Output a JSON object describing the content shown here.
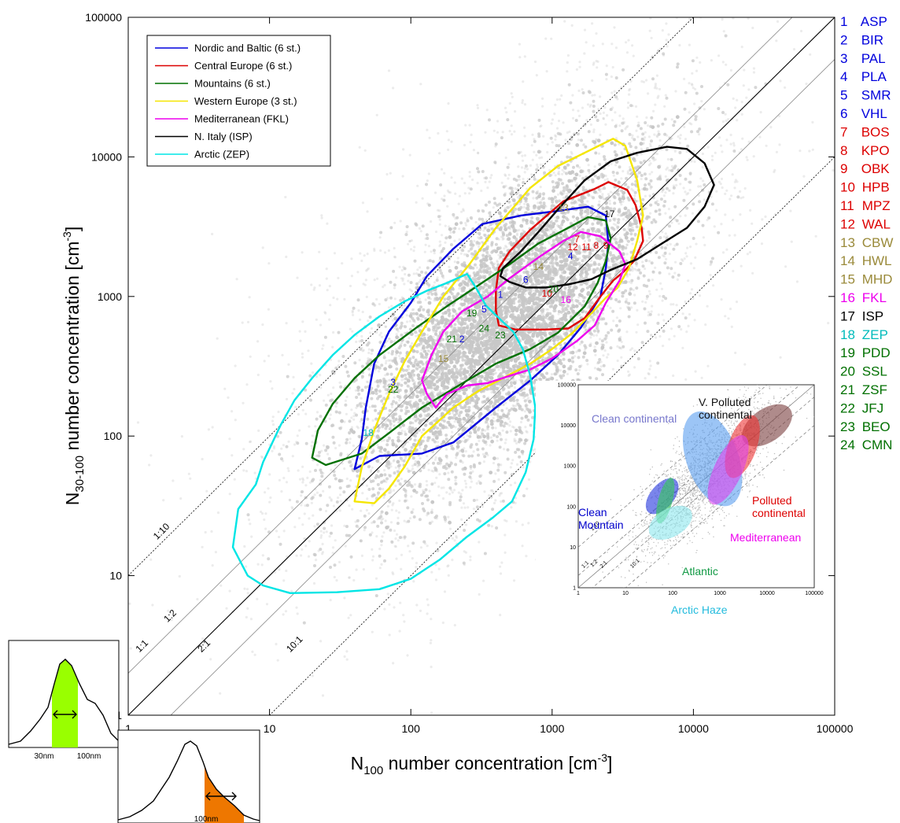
{
  "chart_data": {
    "type": "scatter",
    "x_scale": "log",
    "y_scale": "log",
    "xlim": [
      1,
      100000
    ],
    "ylim": [
      1,
      100000
    ],
    "x_ticks": [
      "1",
      "10",
      "100",
      "1000",
      "10000",
      "100000"
    ],
    "y_ticks": [
      "1",
      "10",
      "100",
      "1000",
      "10000",
      "100000"
    ],
    "xlabel_main": "N",
    "xlabel_sub": "100",
    "xlabel_rest": " number concentration [cm",
    "xlabel_sup": "-3",
    "xlabel_end": "]",
    "ylabel_main": "N",
    "ylabel_sub": "30-100",
    "ylabel_rest": " number concentration [cm",
    "ylabel_sup": "-3",
    "ylabel_end": "]",
    "scatter_color": "#c8c8c8",
    "legend_placement": "top-left",
    "ratio_lines": [
      {
        "label": "1:10",
        "ratio": 10,
        "style": "dotted",
        "lx": 1.6,
        "ly": 18
      },
      {
        "label": "1:2",
        "ratio": 2,
        "style": "thin",
        "lx": 1.9,
        "ly": 4.6
      },
      {
        "label": "1:1",
        "ratio": 1,
        "style": "solid",
        "lx": 1.2,
        "ly": 2.8
      },
      {
        "label": "2:1",
        "ratio": 0.5,
        "style": "thin",
        "lx": 3.3,
        "ly": 2.8
      },
      {
        "label": "10:1",
        "ratio": 0.1,
        "style": "dotted",
        "lx": 14,
        "ly": 2.8
      }
    ],
    "series": [
      {
        "name": "Nordic and Baltic (6 st.)",
        "color": "#0000dd",
        "contour": [
          [
            40,
            58
          ],
          [
            45,
            95
          ],
          [
            48,
            160
          ],
          [
            55,
            330
          ],
          [
            70,
            560
          ],
          [
            100,
            900
          ],
          [
            130,
            1400
          ],
          [
            200,
            2200
          ],
          [
            320,
            3300
          ],
          [
            600,
            3800
          ],
          [
            1100,
            4100
          ],
          [
            1800,
            4400
          ],
          [
            2400,
            3800
          ],
          [
            2500,
            2400
          ],
          [
            2400,
            1600
          ],
          [
            2200,
            1000
          ],
          [
            1600,
            600
          ],
          [
            1100,
            380
          ],
          [
            700,
            250
          ],
          [
            400,
            160
          ],
          [
            200,
            90
          ],
          [
            120,
            75
          ],
          [
            60,
            72
          ],
          [
            40,
            58
          ]
        ]
      },
      {
        "name": "Central Europe (6 st.)",
        "color": "#dd0000",
        "contour": [
          [
            400,
            1100
          ],
          [
            420,
            1600
          ],
          [
            500,
            2100
          ],
          [
            700,
            3000
          ],
          [
            1200,
            4800
          ],
          [
            2000,
            5900
          ],
          [
            2500,
            6600
          ],
          [
            3400,
            5800
          ],
          [
            3900,
            4500
          ],
          [
            4300,
            3100
          ],
          [
            4400,
            2500
          ],
          [
            3800,
            1800
          ],
          [
            3200,
            1500
          ],
          [
            2700,
            1300
          ],
          [
            2200,
            1000
          ],
          [
            1700,
            700
          ],
          [
            1300,
            590
          ],
          [
            900,
            580
          ],
          [
            550,
            580
          ],
          [
            420,
            620
          ],
          [
            400,
            800
          ],
          [
            400,
            1100
          ]
        ]
      },
      {
        "name": "Mountains (6 st.)",
        "color": "#007000",
        "contour": [
          [
            20,
            70
          ],
          [
            22,
            110
          ],
          [
            28,
            170
          ],
          [
            40,
            260
          ],
          [
            60,
            380
          ],
          [
            110,
            600
          ],
          [
            180,
            850
          ],
          [
            300,
            1200
          ],
          [
            500,
            1700
          ],
          [
            800,
            2400
          ],
          [
            1300,
            3100
          ],
          [
            1800,
            3700
          ],
          [
            2400,
            3500
          ],
          [
            2600,
            2600
          ],
          [
            2400,
            1800
          ],
          [
            2100,
            1250
          ],
          [
            1700,
            850
          ],
          [
            1100,
            550
          ],
          [
            700,
            420
          ],
          [
            400,
            330
          ],
          [
            250,
            250
          ],
          [
            120,
            160
          ],
          [
            70,
            105
          ],
          [
            45,
            75
          ],
          [
            25,
            62
          ],
          [
            20,
            70
          ]
        ]
      },
      {
        "name": "Western Europe (3 st.)",
        "color": "#f5e600",
        "contour": [
          [
            40,
            34
          ],
          [
            45,
            60
          ],
          [
            55,
            110
          ],
          [
            70,
            200
          ],
          [
            90,
            340
          ],
          [
            120,
            560
          ],
          [
            170,
            1000
          ],
          [
            260,
            1700
          ],
          [
            400,
            3100
          ],
          [
            700,
            6000
          ],
          [
            1100,
            8600
          ],
          [
            1700,
            10700
          ],
          [
            2700,
            13500
          ],
          [
            3300,
            12000
          ],
          [
            4000,
            6800
          ],
          [
            4400,
            3800
          ],
          [
            4000,
            2500
          ],
          [
            3500,
            1600
          ],
          [
            2900,
            1150
          ],
          [
            2400,
            980
          ],
          [
            1900,
            760
          ],
          [
            1400,
            550
          ],
          [
            1000,
            420
          ],
          [
            700,
            330
          ],
          [
            450,
            260
          ],
          [
            300,
            210
          ],
          [
            200,
            160
          ],
          [
            120,
            100
          ],
          [
            90,
            60
          ],
          [
            70,
            42
          ],
          [
            55,
            33
          ],
          [
            40,
            34
          ]
        ]
      },
      {
        "name": "Mediterranean (FKL)",
        "color": "#ee00ee",
        "contour": [
          [
            120,
            250
          ],
          [
            140,
            380
          ],
          [
            170,
            560
          ],
          [
            230,
            780
          ],
          [
            350,
            1000
          ],
          [
            500,
            1350
          ],
          [
            800,
            1900
          ],
          [
            1200,
            2500
          ],
          [
            1600,
            2900
          ],
          [
            2200,
            2700
          ],
          [
            3000,
            2100
          ],
          [
            3300,
            1700
          ],
          [
            3000,
            1300
          ],
          [
            2400,
            900
          ],
          [
            2000,
            620
          ],
          [
            1500,
            480
          ],
          [
            1000,
            360
          ],
          [
            700,
            300
          ],
          [
            500,
            270
          ],
          [
            350,
            240
          ],
          [
            250,
            230
          ],
          [
            180,
            200
          ],
          [
            150,
            160
          ],
          [
            130,
            200
          ],
          [
            120,
            250
          ]
        ]
      },
      {
        "name": "N. Italy (ISP)",
        "color": "#000000",
        "contour": [
          [
            450,
            1600
          ],
          [
            600,
            2100
          ],
          [
            800,
            2900
          ],
          [
            1100,
            4200
          ],
          [
            1700,
            6800
          ],
          [
            2600,
            9300
          ],
          [
            4000,
            10700
          ],
          [
            6500,
            11800
          ],
          [
            9000,
            11400
          ],
          [
            12000,
            9000
          ],
          [
            14000,
            6300
          ],
          [
            12000,
            4400
          ],
          [
            9000,
            3100
          ],
          [
            6000,
            2400
          ],
          [
            4000,
            1850
          ],
          [
            2600,
            1550
          ],
          [
            1900,
            1330
          ],
          [
            1300,
            1220
          ],
          [
            900,
            1160
          ],
          [
            650,
            1160
          ],
          [
            500,
            1270
          ],
          [
            430,
            1400
          ],
          [
            450,
            1600
          ]
        ]
      },
      {
        "name": "Arctic (ZEP)",
        "color": "#00e5e5",
        "contour": [
          [
            6,
            30
          ],
          [
            5.5,
            16
          ],
          [
            7,
            10
          ],
          [
            9,
            8.5
          ],
          [
            14,
            7.5
          ],
          [
            30,
            7.6
          ],
          [
            60,
            8.0
          ],
          [
            100,
            9.5
          ],
          [
            160,
            13
          ],
          [
            250,
            19
          ],
          [
            380,
            26
          ],
          [
            520,
            34
          ],
          [
            650,
            55
          ],
          [
            740,
            95
          ],
          [
            760,
            160
          ],
          [
            700,
            270
          ],
          [
            620,
            420
          ],
          [
            530,
            560
          ],
          [
            420,
            700
          ],
          [
            340,
            860
          ],
          [
            290,
            1150
          ],
          [
            250,
            1450
          ],
          [
            180,
            1250
          ],
          [
            130,
            1100
          ],
          [
            90,
            920
          ],
          [
            60,
            720
          ],
          [
            40,
            530
          ],
          [
            28,
            380
          ],
          [
            20,
            260
          ],
          [
            15,
            180
          ],
          [
            12,
            120
          ],
          [
            9,
            65
          ],
          [
            8,
            45
          ],
          [
            6,
            30
          ]
        ]
      }
    ],
    "stations": [
      {
        "num": "1",
        "code": "ASP",
        "color": "#0000dd",
        "x": 430,
        "y": 980
      },
      {
        "num": "2",
        "code": "BIR",
        "color": "#0000dd",
        "x": 230,
        "y": 470
      },
      {
        "num": "3",
        "code": "PAL",
        "color": "#0000dd",
        "x": 75,
        "y": 230
      },
      {
        "num": "4",
        "code": "PLA",
        "color": "#0000dd",
        "x": 1350,
        "y": 1850
      },
      {
        "num": "5",
        "code": "SMR",
        "color": "#0000dd",
        "x": 330,
        "y": 770
      },
      {
        "num": "6",
        "code": "VHL",
        "color": "#0000dd",
        "x": 650,
        "y": 1250
      },
      {
        "num": "7",
        "code": "BOS",
        "color": "#dd0000",
        "x": 1500,
        "y": 2450
      },
      {
        "num": "8",
        "code": "KPO",
        "color": "#dd0000",
        "x": 2050,
        "y": 2200
      },
      {
        "num": "9",
        "code": "OBK",
        "color": "#dd0000",
        "x": 2400,
        "y": 2200
      },
      {
        "num": "10",
        "code": "HPB",
        "color": "#dd0000",
        "x": 920,
        "y": 1000
      },
      {
        "num": "11",
        "code": "MPZ",
        "color": "#dd0000",
        "x": 1750,
        "y": 2150
      },
      {
        "num": "12",
        "code": "WAL",
        "color": "#dd0000",
        "x": 1400,
        "y": 2150
      },
      {
        "num": "13",
        "code": "CBW",
        "color": "#9a8a3a",
        "x": 1200,
        "y": 4100
      },
      {
        "num": "14",
        "code": "HWL",
        "color": "#9a8a3a",
        "x": 800,
        "y": 1550
      },
      {
        "num": "15",
        "code": "MHD",
        "color": "#9a8a3a",
        "x": 170,
        "y": 340
      },
      {
        "num": "16",
        "code": "FKL",
        "color": "#ee00ee",
        "x": 1250,
        "y": 900
      },
      {
        "num": "17",
        "code": "ISP",
        "color": "#000000",
        "x": 2550,
        "y": 3700
      },
      {
        "num": "18",
        "code": "ZEP",
        "color": "#00bbbb",
        "x": 50,
        "y": 100
      },
      {
        "num": "19",
        "code": "PDD",
        "color": "#007000",
        "x": 270,
        "y": 720
      },
      {
        "num": "20",
        "code": "SSL",
        "color": "#007000",
        "x": 1020,
        "y": 1070
      },
      {
        "num": "21",
        "code": "ZSF",
        "color": "#007000",
        "x": 195,
        "y": 470
      },
      {
        "num": "22",
        "code": "JFJ",
        "color": "#007000",
        "x": 75,
        "y": 205
      },
      {
        "num": "23",
        "code": "BEO",
        "color": "#007000",
        "x": 430,
        "y": 500
      },
      {
        "num": "24",
        "code": "CMN",
        "color": "#007000",
        "x": 330,
        "y": 560
      }
    ],
    "inset": {
      "ticks": [
        "1",
        "10",
        "100",
        "1000",
        "10000",
        "100000"
      ],
      "ratio_labels": [
        "1:10",
        "1:1",
        "1:2",
        "2:1",
        "10:1"
      ],
      "regions": [
        {
          "label": "Clean continental",
          "color": "#7777cc",
          "fill": "#5a9ff0",
          "cx": 700,
          "cy": 1500,
          "rx": 0.55,
          "ry": 1.05,
          "angle": -20
        },
        {
          "label": "V. Polluted continental",
          "color": "#111111",
          "fill": "#7a3e3e",
          "cx": 10000,
          "cy": 10000,
          "rx": 0.35,
          "ry": 0.6,
          "angle": 55
        },
        {
          "label": "Polluted continental",
          "color": "#dd0000",
          "fill": "#ee3333",
          "cx": 3000,
          "cy": 3000,
          "rx": 0.3,
          "ry": 0.7,
          "angle": 20
        },
        {
          "label": "Mediterranean",
          "color": "#ee00ee",
          "fill": "#dd44ee",
          "cx": 1500,
          "cy": 800,
          "rx": 0.3,
          "ry": 0.8,
          "angle": 25
        },
        {
          "label": "Clean Mountain",
          "color": "#0000cc",
          "fill": "#2233dd",
          "cx": 60,
          "cy": 180,
          "rx": 0.25,
          "ry": 0.45,
          "angle": 40
        },
        {
          "label": "Atlantic",
          "color": "#119944",
          "fill": "#33cc55",
          "cx": 70,
          "cy": 140,
          "rx": 0.15,
          "ry": 0.5,
          "angle": 15
        },
        {
          "label": "Arctic Haze",
          "color": "#22bbdd",
          "fill": "#8ee8ee",
          "cx": 90,
          "cy": 40,
          "rx": 0.5,
          "ry": 0.3,
          "angle": -30
        }
      ]
    },
    "size_dist": {
      "left_labels": [
        "30nm",
        "100nm"
      ],
      "left_color": "#99ff00",
      "bottom_label": "100nm",
      "bottom_color": "#ee7700"
    }
  }
}
